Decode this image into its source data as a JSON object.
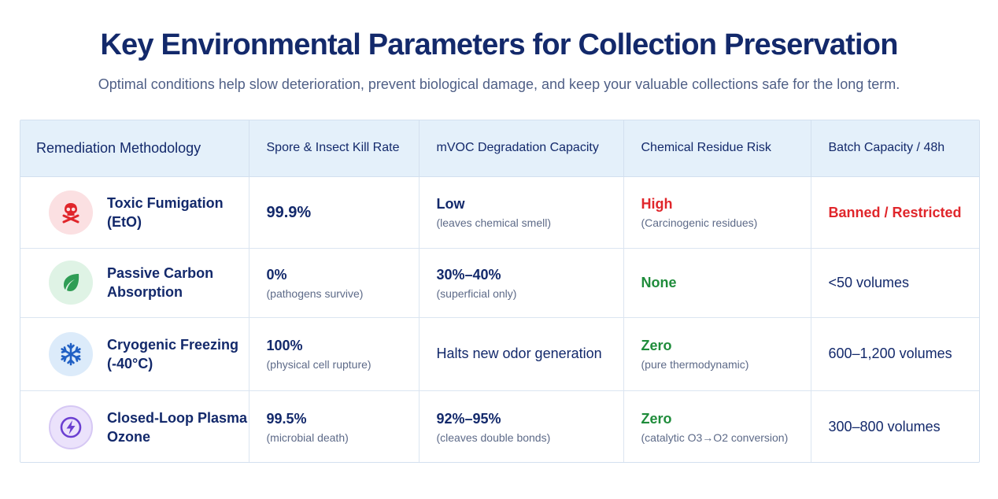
{
  "header": {
    "title": "Key Environmental Parameters for Collection  Preservation",
    "subtitle": "Optimal conditions help slow deterioration, prevent biological damage, and keep your valuable collections safe for the long term."
  },
  "table": {
    "columns": [
      "Remediation Methodology",
      "Spore & Insect Kill Rate",
      "mVOC Degradation Capacity",
      "Chemical Residue Risk",
      "Batch Capacity / 48h"
    ],
    "rows": [
      {
        "method": "Toxic Fumigation (EtO)",
        "icon": "skull-crossbones-icon",
        "kill_rate": "99.9%",
        "kill_note": "",
        "mvoc": "Low",
        "mvoc_note": "(leaves chemical smell)",
        "residue": "High",
        "residue_note": "(Carcinogenic residues)",
        "batch": "Banned / Restricted"
      },
      {
        "method": "Passive Carbon Absorption",
        "icon": "leaf-icon",
        "kill_rate": "0%",
        "kill_note": "(pathogens survive)",
        "mvoc": "30%–40%",
        "mvoc_note": "(superficial only)",
        "residue": "None",
        "residue_note": "",
        "batch": "<50 volumes"
      },
      {
        "method": "Cryogenic Freezing (-40°C)",
        "icon": "snowflake-icon",
        "kill_rate": "100%",
        "kill_note": "(physical cell rupture)",
        "mvoc": "Halts new odor generation",
        "mvoc_note": "",
        "residue": "Zero",
        "residue_note": "(pure thermodynamic)",
        "batch": "600–1,200 volumes"
      },
      {
        "method": "Closed-Loop Plasma Ozone",
        "icon": "lightning-bolt-icon",
        "kill_rate": "99.5%",
        "kill_note": "(microbial death)",
        "mvoc": "92%–95%",
        "mvoc_note": "(cleaves double bonds)",
        "residue": "Zero",
        "residue_note": "(catalytic O3→O2 conversion)",
        "batch": "300–800 volumes"
      }
    ]
  },
  "colors": {
    "title": "#13296b",
    "header_bg": "#e4f0fa",
    "danger": "#e0262b",
    "safe": "#1f8c3b"
  }
}
